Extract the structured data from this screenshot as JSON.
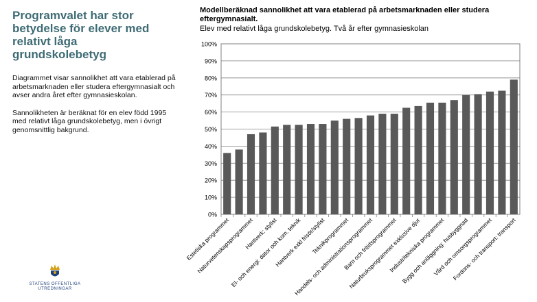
{
  "left": {
    "heading": "Programvalet har stor betydelse för elever med relativt låga grundskolebetyg",
    "paragraph1": "Diagrammet visar sannolikhet att vara etablerad på arbetsmarknaden eller studera eftergymnasialt och avser andra året efter gymnasieskolan.",
    "paragraph2": "Sannolikheten är beräknat för en elev född 1995 med relativt låga grundskolebetyg, men i övrigt genomsnittlig bakgrund."
  },
  "logo": {
    "line1": "STATENS OFFENTLIGA",
    "line2": "UTREDNINGAR"
  },
  "chart_data": {
    "type": "bar",
    "title": "Modellberäknad sannolikhet att vara etablerad på arbetsmarknaden eller studera eftergymnasialt.",
    "subtitle": "Elev med relativt låga grundskolebetyg. Två år efter gymnasieskolan",
    "ylim": [
      0,
      100
    ],
    "yticks": [
      "0%",
      "10%",
      "20%",
      "30%",
      "40%",
      "50%",
      "60%",
      "70%",
      "80%",
      "90%",
      "100%"
    ],
    "categories": [
      "Estetiska programmet",
      "",
      "Naturvetenskapsprogrammet",
      "",
      "Hantverk: stylist",
      "",
      "El- och energi: dator och kom. teknik",
      "",
      "Hantverk exkl frisör/stylist",
      "",
      "Teknikprogrammet",
      "",
      "Handels- och administrationsprogrammet",
      "",
      "Barn och fritidsprogrammet",
      "",
      "Naturbruksprogrammet exklusive djur",
      "",
      "Industritekniska programmet",
      "",
      "Bygg och anläggning: husbyggnad",
      "",
      "Vård och omsorgsprogrammet",
      "",
      "Fordons- och transport: transport"
    ],
    "values": [
      36,
      38,
      47,
      48,
      51.5,
      52.5,
      52.5,
      53,
      53,
      55,
      56,
      56.5,
      58,
      59,
      59,
      62.5,
      63.5,
      65.5,
      65.5,
      67,
      70,
      70.5,
      72,
      72.5,
      79
    ],
    "bar_color": "#595959",
    "grid": true
  }
}
